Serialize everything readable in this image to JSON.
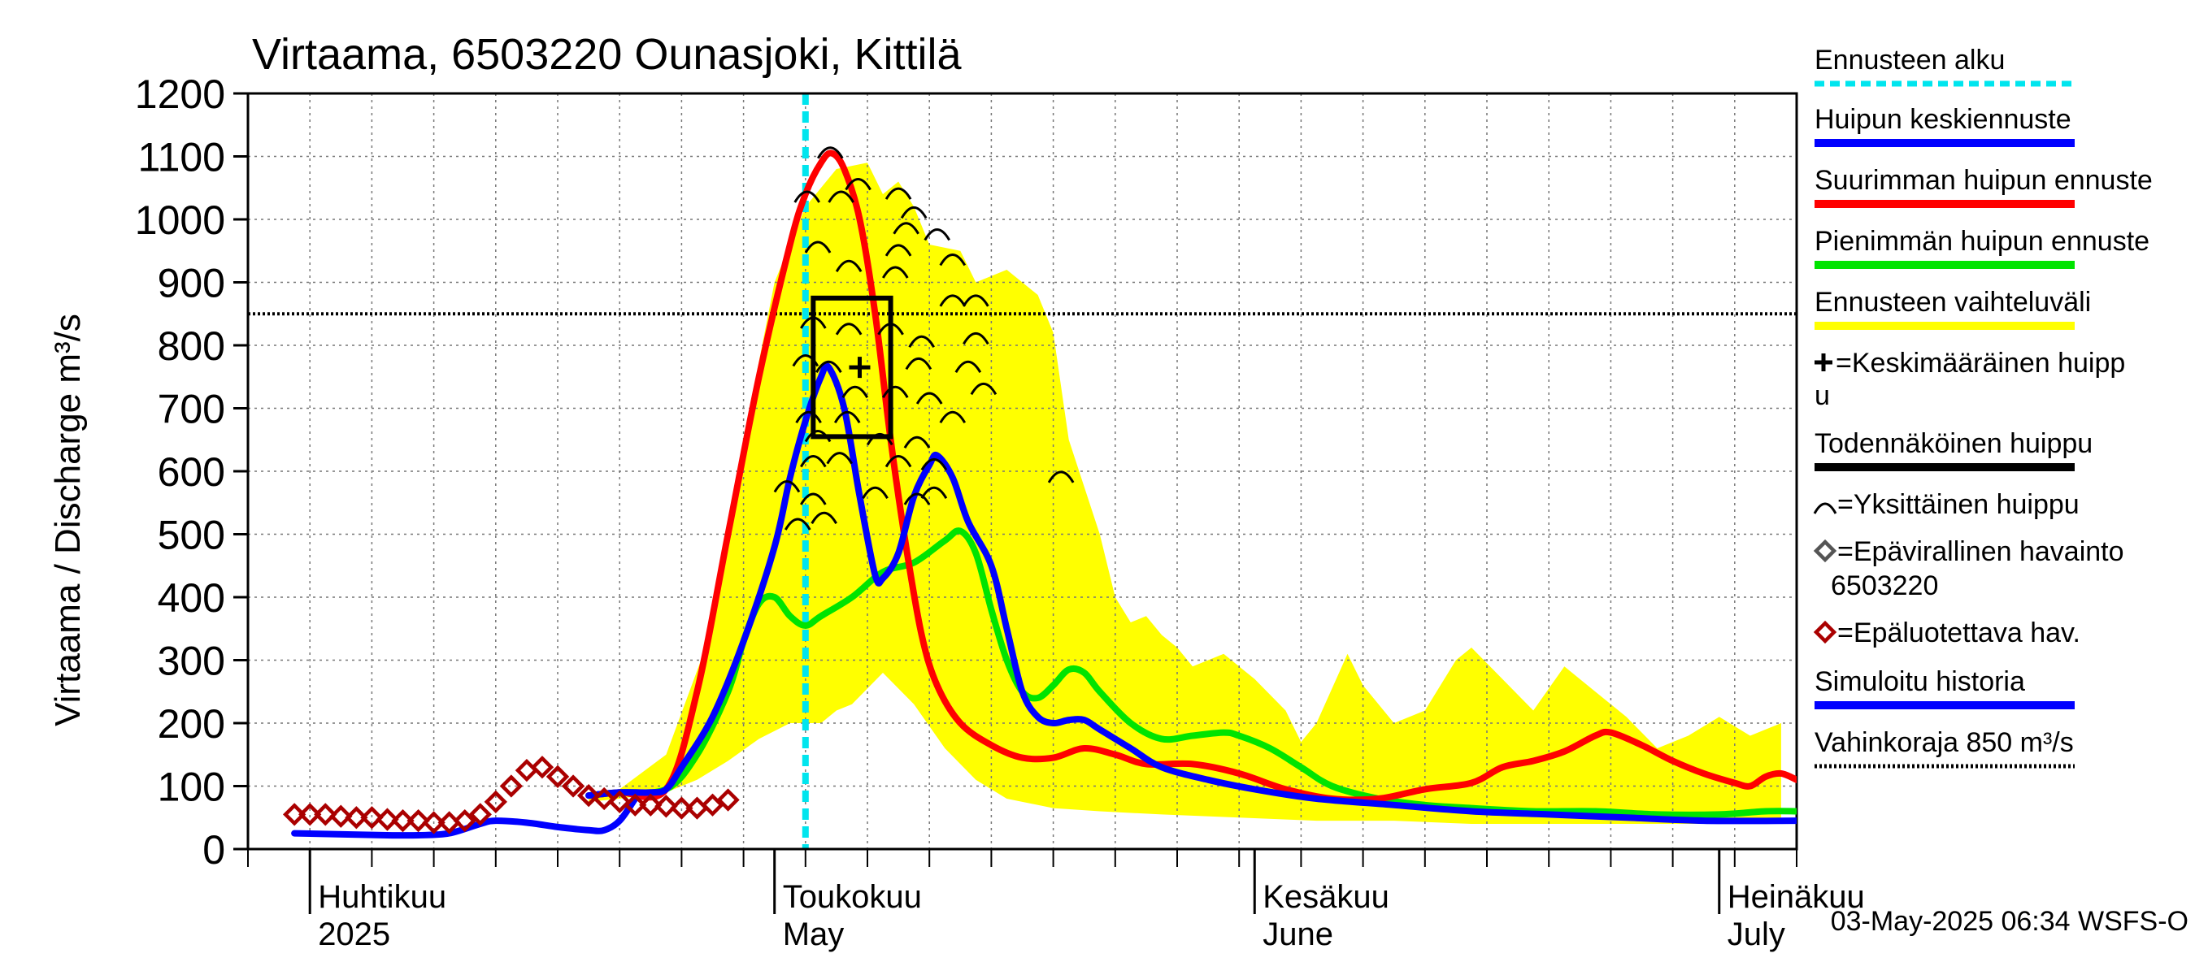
{
  "chart_data": {
    "type": "line",
    "title": "Virtaama, 6503220 Ounasjoki, Kittilä",
    "ylabel": "Virtaama / Discharge   m³/s",
    "ylim": [
      0,
      1200
    ],
    "yticks": [
      0,
      100,
      200,
      300,
      400,
      500,
      600,
      700,
      800,
      900,
      1000,
      1100,
      1200
    ],
    "xlim": [
      "2025-03-28",
      "2025-07-31"
    ],
    "x_month_labels": [
      {
        "date": "2025-04-01",
        "fi": "Huhtikuu",
        "en": "2025"
      },
      {
        "date": "2025-05-01",
        "fi": "Toukokuu",
        "en": "May"
      },
      {
        "date": "2025-06-01",
        "fi": "Kesäkuu",
        "en": "June"
      },
      {
        "date": "2025-07-01",
        "fi": "Heinäkuu",
        "en": "July"
      }
    ],
    "forecast_start": "2025-05-03",
    "damage_threshold": 850,
    "timestamp": "03-May-2025 06:34 WSFS-O",
    "colors": {
      "forecast_start": "#00e5ee",
      "mean_peak": "#0000ff",
      "max_peak": "#ff0000",
      "min_peak": "#00e400",
      "range": "#ffff00",
      "likely_peak": "#000000",
      "single_peak": "#000000",
      "unofficial_obs": "#555555",
      "unreliable_obs": "#aa0000",
      "simulated": "#0000ff",
      "threshold": "#000000"
    },
    "legend": [
      {
        "label": "Ennusteen alku",
        "key": "forecast_start",
        "style": "dashed"
      },
      {
        "label": "Huipun keskiennuste",
        "key": "mean_peak",
        "style": "line"
      },
      {
        "label": "Suurimman huipun ennuste",
        "key": "max_peak",
        "style": "line"
      },
      {
        "label": "Pienimmän huipun ennuste",
        "key": "min_peak",
        "style": "line"
      },
      {
        "label": "Ennusteen vaihteluväli",
        "key": "range",
        "style": "line"
      },
      {
        "label": "=Keskimääräinen huipp",
        "label2": "u",
        "key": "likely_peak",
        "style": "plus"
      },
      {
        "label": "Todennäköinen huippu",
        "key": "likely_peak",
        "style": "line"
      },
      {
        "label": "=Yksittäinen huippu",
        "key": "single_peak",
        "style": "arc"
      },
      {
        "label": "=Epävirallinen havainto",
        "label2": "6503220",
        "key": "unofficial_obs",
        "style": "diamond"
      },
      {
        "label": "=Epäluotettava hav.",
        "key": "unreliable_obs",
        "style": "diamond"
      },
      {
        "label": "Simuloitu historia",
        "key": "simulated",
        "style": "line"
      },
      {
        "label": "Vahinkoraja 850 m³/s",
        "key": "threshold",
        "style": "dotted"
      }
    ],
    "series": [
      {
        "name": "Ennusteen vaihteluväli",
        "kind": "band",
        "upper": [
          [
            3,
            85
          ],
          [
            5,
            95
          ],
          [
            8,
            150
          ],
          [
            11,
            350
          ],
          [
            13,
            650
          ],
          [
            15,
            900
          ],
          [
            17,
            1020
          ],
          [
            19,
            1080
          ],
          [
            21,
            1090
          ],
          [
            22,
            1040
          ],
          [
            23,
            1060
          ],
          [
            24,
            1020
          ],
          [
            25,
            960
          ],
          [
            27,
            950
          ],
          [
            28,
            900
          ],
          [
            30,
            920
          ],
          [
            32,
            880
          ],
          [
            33,
            820
          ],
          [
            34,
            650
          ],
          [
            36,
            500
          ],
          [
            37,
            400
          ],
          [
            38,
            360
          ],
          [
            39,
            370
          ],
          [
            40,
            340
          ],
          [
            41,
            320
          ],
          [
            42,
            290
          ],
          [
            44,
            310
          ],
          [
            46,
            270
          ],
          [
            48,
            220
          ],
          [
            49,
            170
          ],
          [
            50,
            200
          ],
          [
            52,
            310
          ],
          [
            53,
            260
          ],
          [
            55,
            200
          ],
          [
            57,
            220
          ],
          [
            59,
            300
          ],
          [
            60,
            320
          ],
          [
            62,
            270
          ],
          [
            64,
            220
          ],
          [
            66,
            290
          ],
          [
            68,
            250
          ],
          [
            70,
            210
          ],
          [
            72,
            160
          ],
          [
            74,
            180
          ],
          [
            76,
            210
          ],
          [
            78,
            180
          ],
          [
            80,
            200
          ]
        ],
        "lower": [
          [
            3,
            75
          ],
          [
            5,
            80
          ],
          [
            8,
            90
          ],
          [
            10,
            110
          ],
          [
            12,
            140
          ],
          [
            14,
            175
          ],
          [
            16,
            200
          ],
          [
            18,
            200
          ],
          [
            19,
            220
          ],
          [
            20,
            230
          ],
          [
            22,
            280
          ],
          [
            24,
            230
          ],
          [
            26,
            160
          ],
          [
            28,
            110
          ],
          [
            30,
            80
          ],
          [
            33,
            65
          ],
          [
            36,
            60
          ],
          [
            40,
            55
          ],
          [
            45,
            50
          ],
          [
            50,
            45
          ],
          [
            55,
            45
          ],
          [
            60,
            40
          ],
          [
            65,
            40
          ],
          [
            70,
            40
          ],
          [
            75,
            40
          ],
          [
            80,
            40
          ]
        ]
      },
      {
        "name": "Suurimman huipun ennuste",
        "key": "max_peak",
        "points": [
          [
            3,
            85
          ],
          [
            5,
            90
          ],
          [
            8,
            95
          ],
          [
            10,
            250
          ],
          [
            12,
            500
          ],
          [
            14,
            750
          ],
          [
            16,
            960
          ],
          [
            17,
            1040
          ],
          [
            18,
            1090
          ],
          [
            18.7,
            1105
          ],
          [
            19.5,
            1080
          ],
          [
            20.5,
            1000
          ],
          [
            21.5,
            850
          ],
          [
            22.5,
            650
          ],
          [
            23.5,
            480
          ],
          [
            24.5,
            340
          ],
          [
            25.5,
            260
          ],
          [
            27,
            200
          ],
          [
            29,
            165
          ],
          [
            31,
            145
          ],
          [
            33,
            145
          ],
          [
            35,
            160
          ],
          [
            37,
            150
          ],
          [
            39,
            135
          ],
          [
            42,
            135
          ],
          [
            45,
            120
          ],
          [
            48,
            95
          ],
          [
            51,
            80
          ],
          [
            54,
            80
          ],
          [
            57,
            95
          ],
          [
            60,
            105
          ],
          [
            62,
            130
          ],
          [
            64,
            140
          ],
          [
            66,
            155
          ],
          [
            68,
            180
          ],
          [
            69,
            185
          ],
          [
            71,
            165
          ],
          [
            73,
            140
          ],
          [
            75,
            120
          ],
          [
            77,
            105
          ],
          [
            78,
            100
          ],
          [
            79,
            115
          ],
          [
            80,
            120
          ],
          [
            81,
            110
          ]
        ]
      },
      {
        "name": "Pienimmän huipun ennuste",
        "key": "min_peak",
        "points": [
          [
            3,
            85
          ],
          [
            5,
            90
          ],
          [
            8,
            95
          ],
          [
            10,
            150
          ],
          [
            12,
            250
          ],
          [
            13,
            330
          ],
          [
            14,
            390
          ],
          [
            15,
            400
          ],
          [
            16,
            370
          ],
          [
            17,
            355
          ],
          [
            18,
            370
          ],
          [
            20,
            400
          ],
          [
            22,
            440
          ],
          [
            24,
            455
          ],
          [
            26,
            490
          ],
          [
            27,
            505
          ],
          [
            28,
            470
          ],
          [
            29,
            380
          ],
          [
            30,
            300
          ],
          [
            31,
            250
          ],
          [
            32,
            240
          ],
          [
            33,
            260
          ],
          [
            34,
            285
          ],
          [
            35,
            280
          ],
          [
            36,
            250
          ],
          [
            38,
            200
          ],
          [
            40,
            175
          ],
          [
            42,
            180
          ],
          [
            44,
            185
          ],
          [
            45,
            180
          ],
          [
            47,
            160
          ],
          [
            49,
            130
          ],
          [
            51,
            100
          ],
          [
            54,
            80
          ],
          [
            57,
            70
          ],
          [
            60,
            65
          ],
          [
            64,
            60
          ],
          [
            68,
            60
          ],
          [
            72,
            55
          ],
          [
            76,
            55
          ],
          [
            79,
            60
          ],
          [
            81,
            60
          ]
        ]
      },
      {
        "name": "Huipun keskiennuste",
        "key": "mean_peak",
        "points": [
          [
            3,
            85
          ],
          [
            5,
            90
          ],
          [
            7,
            90
          ],
          [
            8,
            95
          ],
          [
            9,
            130
          ],
          [
            11,
            210
          ],
          [
            13,
            330
          ],
          [
            15,
            480
          ],
          [
            16,
            590
          ],
          [
            17,
            680
          ],
          [
            18,
            750
          ],
          [
            18.5,
            765
          ],
          [
            19.5,
            700
          ],
          [
            20.5,
            560
          ],
          [
            21.5,
            435
          ],
          [
            22,
            430
          ],
          [
            23,
            470
          ],
          [
            24,
            560
          ],
          [
            25,
            610
          ],
          [
            25.5,
            625
          ],
          [
            26.5,
            590
          ],
          [
            27.5,
            520
          ],
          [
            29,
            450
          ],
          [
            30,
            350
          ],
          [
            31,
            250
          ],
          [
            32,
            210
          ],
          [
            33,
            200
          ],
          [
            34,
            205
          ],
          [
            35,
            205
          ],
          [
            36,
            190
          ],
          [
            38,
            160
          ],
          [
            40,
            130
          ],
          [
            43,
            110
          ],
          [
            46,
            95
          ],
          [
            50,
            80
          ],
          [
            55,
            70
          ],
          [
            60,
            60
          ],
          [
            65,
            55
          ],
          [
            70,
            50
          ],
          [
            75,
            45
          ],
          [
            81,
            45
          ]
        ]
      },
      {
        "name": "Simuloitu historia",
        "key": "simulated",
        "points": [
          [
            -16,
            25
          ],
          [
            -10,
            22
          ],
          [
            -8,
            22
          ],
          [
            -6,
            25
          ],
          [
            -4,
            40
          ],
          [
            -3,
            45
          ],
          [
            -1,
            42
          ],
          [
            1,
            35
          ],
          [
            3,
            30
          ],
          [
            4,
            30
          ],
          [
            5,
            45
          ],
          [
            6,
            80
          ]
        ]
      }
    ],
    "likely_peak_box": {
      "x": [
        17.5,
        22.5
      ],
      "y": [
        655,
        875
      ]
    },
    "mean_peak_marker": {
      "x": 20.5,
      "y": 765
    },
    "single_peaks": [
      [
        18.6,
        1110
      ],
      [
        20.4,
        1060
      ],
      [
        23,
        1045
      ],
      [
        17.1,
        1040
      ],
      [
        19.3,
        1040
      ],
      [
        24,
        1015
      ],
      [
        23.5,
        990
      ],
      [
        25.5,
        980
      ],
      [
        17.8,
        960
      ],
      [
        23,
        955
      ],
      [
        26.5,
        940
      ],
      [
        19.8,
        930
      ],
      [
        22.8,
        920
      ],
      [
        26.5,
        875
      ],
      [
        28,
        875
      ],
      [
        17.5,
        840
      ],
      [
        19.8,
        830
      ],
      [
        22.5,
        830
      ],
      [
        24.5,
        810
      ],
      [
        28,
        815
      ],
      [
        17,
        780
      ],
      [
        18.5,
        770
      ],
      [
        24.3,
        775
      ],
      [
        27.5,
        770
      ],
      [
        20.2,
        730
      ],
      [
        22.8,
        730
      ],
      [
        28.5,
        735
      ],
      [
        25,
        720
      ],
      [
        17.2,
        690
      ],
      [
        19.7,
        690
      ],
      [
        26.5,
        690
      ],
      [
        17.8,
        660
      ],
      [
        21.8,
        655
      ],
      [
        24.2,
        650
      ],
      [
        17.5,
        620
      ],
      [
        19.2,
        625
      ],
      [
        23,
        620
      ],
      [
        25.3,
        615
      ],
      [
        15.8,
        580
      ],
      [
        17.5,
        560
      ],
      [
        21.5,
        570
      ],
      [
        24.2,
        560
      ],
      [
        25.3,
        570
      ],
      [
        16.5,
        520
      ],
      [
        18.2,
        530
      ],
      [
        33.5,
        595
      ]
    ],
    "unreliable_observations": [
      [
        -16,
        55
      ],
      [
        -15,
        55
      ],
      [
        -14,
        55
      ],
      [
        -13,
        52
      ],
      [
        -12,
        50
      ],
      [
        -11,
        50
      ],
      [
        -10,
        47
      ],
      [
        -9,
        45
      ],
      [
        -8,
        45
      ],
      [
        -7,
        42
      ],
      [
        -6,
        42
      ],
      [
        -5,
        45
      ],
      [
        -4,
        55
      ],
      [
        -3,
        75
      ],
      [
        -2,
        100
      ],
      [
        -1,
        125
      ],
      [
        0,
        130
      ],
      [
        1,
        115
      ],
      [
        2,
        100
      ],
      [
        3,
        85
      ],
      [
        4,
        80
      ],
      [
        5,
        75
      ],
      [
        6,
        70
      ],
      [
        7,
        70
      ],
      [
        8,
        68
      ],
      [
        9,
        65
      ],
      [
        10,
        65
      ],
      [
        11,
        70
      ],
      [
        12,
        78
      ]
    ]
  }
}
